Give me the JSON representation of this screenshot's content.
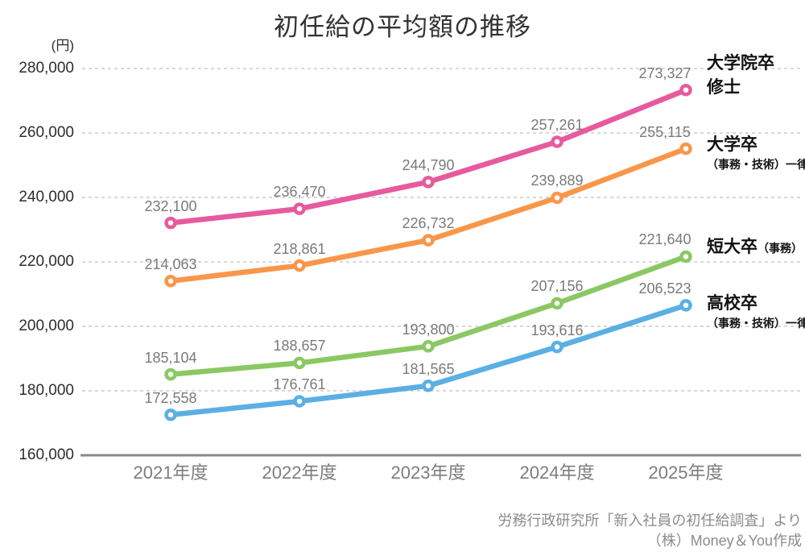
{
  "title": "初任給の平均額の推移",
  "y_axis": {
    "unit": "(円)",
    "tick_labels": [
      "280,000",
      "260,000",
      "240,000",
      "220,000",
      "200,000",
      "180,000",
      "160,000"
    ]
  },
  "x_axis": {
    "tick_labels": [
      "2021年度",
      "2022年度",
      "2023年度",
      "2024年度",
      "2025年度"
    ]
  },
  "chart_data": {
    "type": "line",
    "categories": [
      "2021年度",
      "2022年度",
      "2023年度",
      "2024年度",
      "2025年度"
    ],
    "series": [
      {
        "name": "大学院卒修士",
        "color": "#e75a9e",
        "values": [
          232100,
          236470,
          244790,
          257261,
          273327
        ]
      },
      {
        "name": "大学卒（事務・技術）一律",
        "color": "#f9964a",
        "values": [
          214063,
          218861,
          226732,
          239889,
          255115
        ]
      },
      {
        "name": "短大卒（事務）",
        "color": "#8bc863",
        "values": [
          185104,
          188657,
          193800,
          207156,
          221640
        ]
      },
      {
        "name": "高校卒（事務・技術）一律",
        "color": "#5bafe3",
        "values": [
          172558,
          176761,
          181565,
          193616,
          206523
        ]
      }
    ],
    "ylim": [
      160000,
      280000
    ],
    "ytick_step": 20000,
    "ylabel": "(円)",
    "grid": "horizontal-dashed",
    "legend_position": "right",
    "point_labels": true,
    "colors": {
      "grid": "#cccccc",
      "axis": "#8a8a8a",
      "point_label_text": "#7a7a7a",
      "marker_fill": "#ffffff"
    }
  },
  "legend": {
    "items": [
      {
        "title": "大学院卒",
        "title2": "修士",
        "inline_sub": "",
        "sub": ""
      },
      {
        "title": "大学卒",
        "title2": "",
        "inline_sub": "",
        "sub": "（事務・技術）一律"
      },
      {
        "title": "短大卒",
        "title2": "",
        "inline_sub": "（事務）",
        "sub": ""
      },
      {
        "title": "高校卒",
        "title2": "",
        "inline_sub": "",
        "sub": "（事務・技術）一律"
      }
    ]
  },
  "footer": {
    "source_line": "労務行政研究所「新入社員の初任給調査」より",
    "credit_line": "（株）Money＆You作成"
  }
}
